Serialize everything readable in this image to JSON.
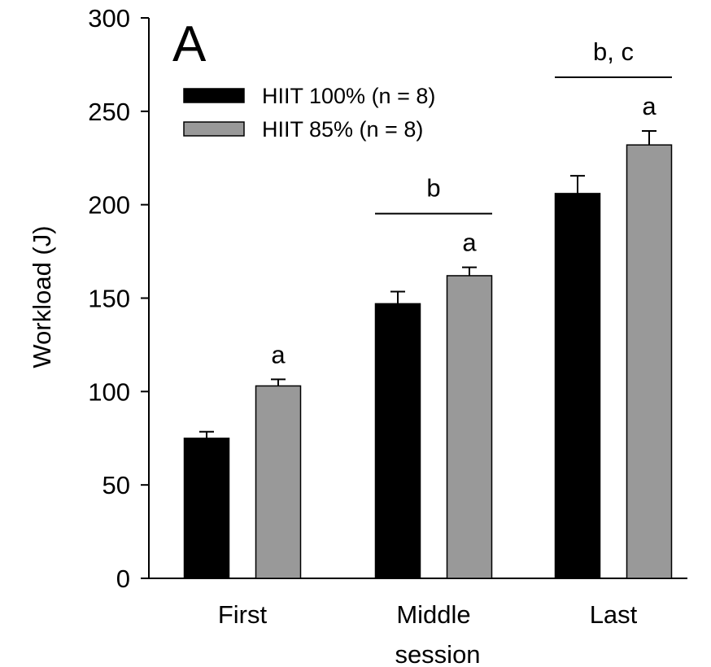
{
  "chart_data": {
    "type": "bar",
    "panel_label": "A",
    "categories": [
      "First",
      "Middle",
      "Last"
    ],
    "xlabel": "session",
    "ylabel": "Workload (J)",
    "ylim": [
      0,
      300
    ],
    "yticks": [
      0,
      50,
      100,
      150,
      200,
      250,
      300
    ],
    "grid": false,
    "legend_position": "top-left",
    "series": [
      {
        "name": "HIIT 100% (n = 8)",
        "color": "#000000",
        "values": [
          75,
          147,
          206
        ],
        "errors": [
          3.5,
          6.5,
          9.5
        ]
      },
      {
        "name": "HIIT 85% (n = 8)",
        "color": "#999999",
        "values": [
          103,
          162,
          232
        ],
        "errors": [
          3.5,
          4.5,
          7.5
        ]
      }
    ],
    "bar_annotations": [
      {
        "category": 0,
        "series": 1,
        "label": "a"
      },
      {
        "category": 1,
        "series": 1,
        "label": "a"
      },
      {
        "category": 2,
        "series": 1,
        "label": "a"
      }
    ],
    "group_annotations": [
      {
        "category": 1,
        "label": "b"
      },
      {
        "category": 2,
        "label": "b, c"
      }
    ]
  }
}
